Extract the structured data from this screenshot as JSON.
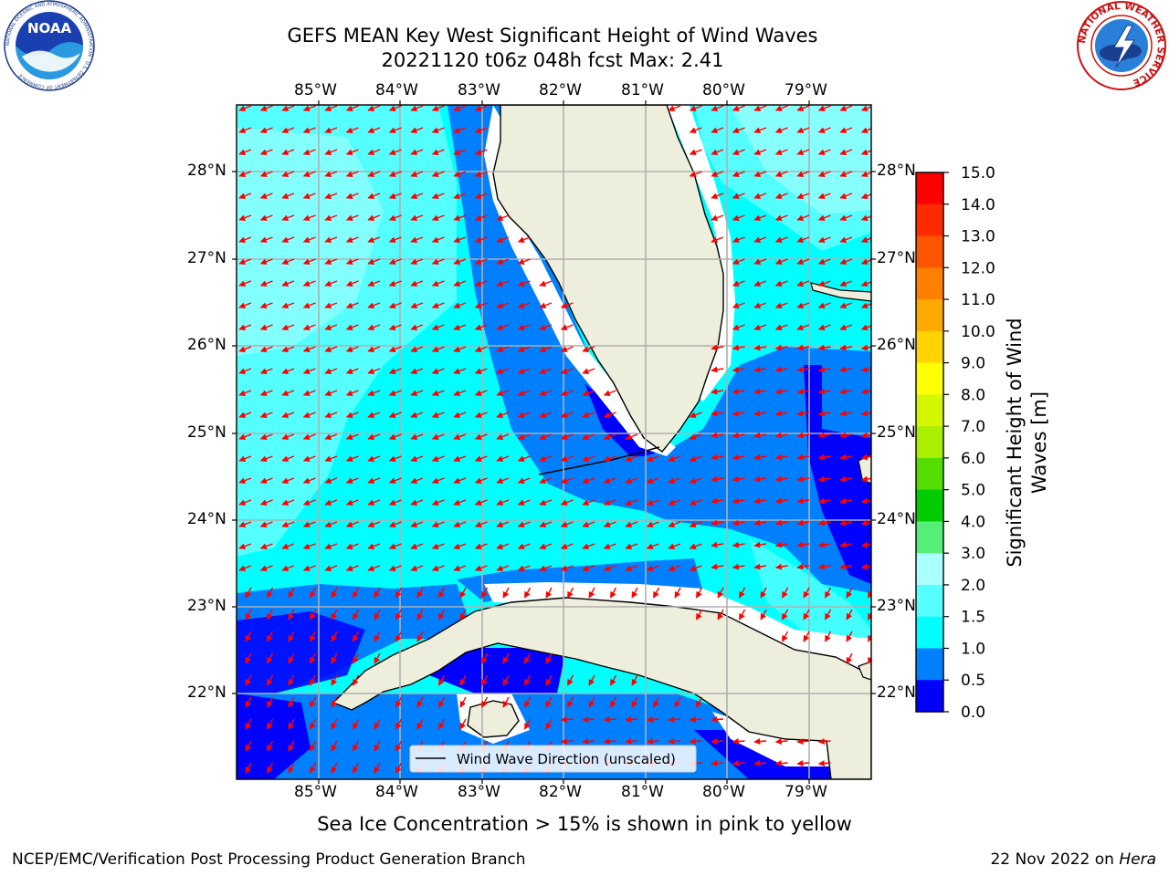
{
  "title_line1": "GEFS MEAN Key West Significant Height of Wind Waves",
  "title_line2": "20221120 t06z 048h fcst   Max: 2.41",
  "lon_ticks": [
    "85°W",
    "84°W",
    "83°W",
    "82°W",
    "81°W",
    "80°W",
    "79°W"
  ],
  "lat_ticks": [
    "28°N",
    "27°N",
    "26°N",
    "25°N",
    "24°N",
    "23°N",
    "22°N"
  ],
  "colorbar": {
    "label_line1": "Significant Height of Wind",
    "label_line2": "Waves [m]",
    "ticks": [
      "15.0",
      "14.0",
      "13.0",
      "12.0",
      "11.0",
      "10.0",
      "9.0",
      "8.0",
      "7.0",
      "6.0",
      "5.0",
      "4.0",
      "3.0",
      "2.0",
      "1.5",
      "1.0",
      "0.5",
      "0.0"
    ],
    "colors": [
      "#ff0000",
      "#ff2a00",
      "#ff5500",
      "#ff7f00",
      "#ffaa00",
      "#ffd400",
      "#ffff00",
      "#d4f700",
      "#aaee00",
      "#55dd00",
      "#00cc00",
      "#55ee77",
      "#aaffff",
      "#55ffff",
      "#00ffff",
      "#0080ff",
      "#0000ff"
    ]
  },
  "legend_label": "Wind Wave Direction (unscaled)",
  "footer_note": "Sea Ice Concentration > 15% is shown in pink to yellow",
  "credit_left": "NCEP/EMC/Verification Post Processing Product Generation Branch",
  "credit_date": "22 Nov 2022 on ",
  "credit_machine": "Hera",
  "noaa_logo_text": "NOAA",
  "noaa_ring_text": "NATIONAL OCEANIC AND ATMOSPHERIC ADMINISTRATION · U.S. DEPARTMENT OF COMMERCE",
  "nws_ring_text": "NATIONAL WEATHER SERVICE",
  "colors": {
    "land": "#eeeedc",
    "wave_low": "#0000ff",
    "wave_mid": "#0080ff",
    "wave_high": "#00ffff",
    "wave_top": "#55ffff",
    "arrow": "#ff0000",
    "grid": "#b0b0b0"
  }
}
